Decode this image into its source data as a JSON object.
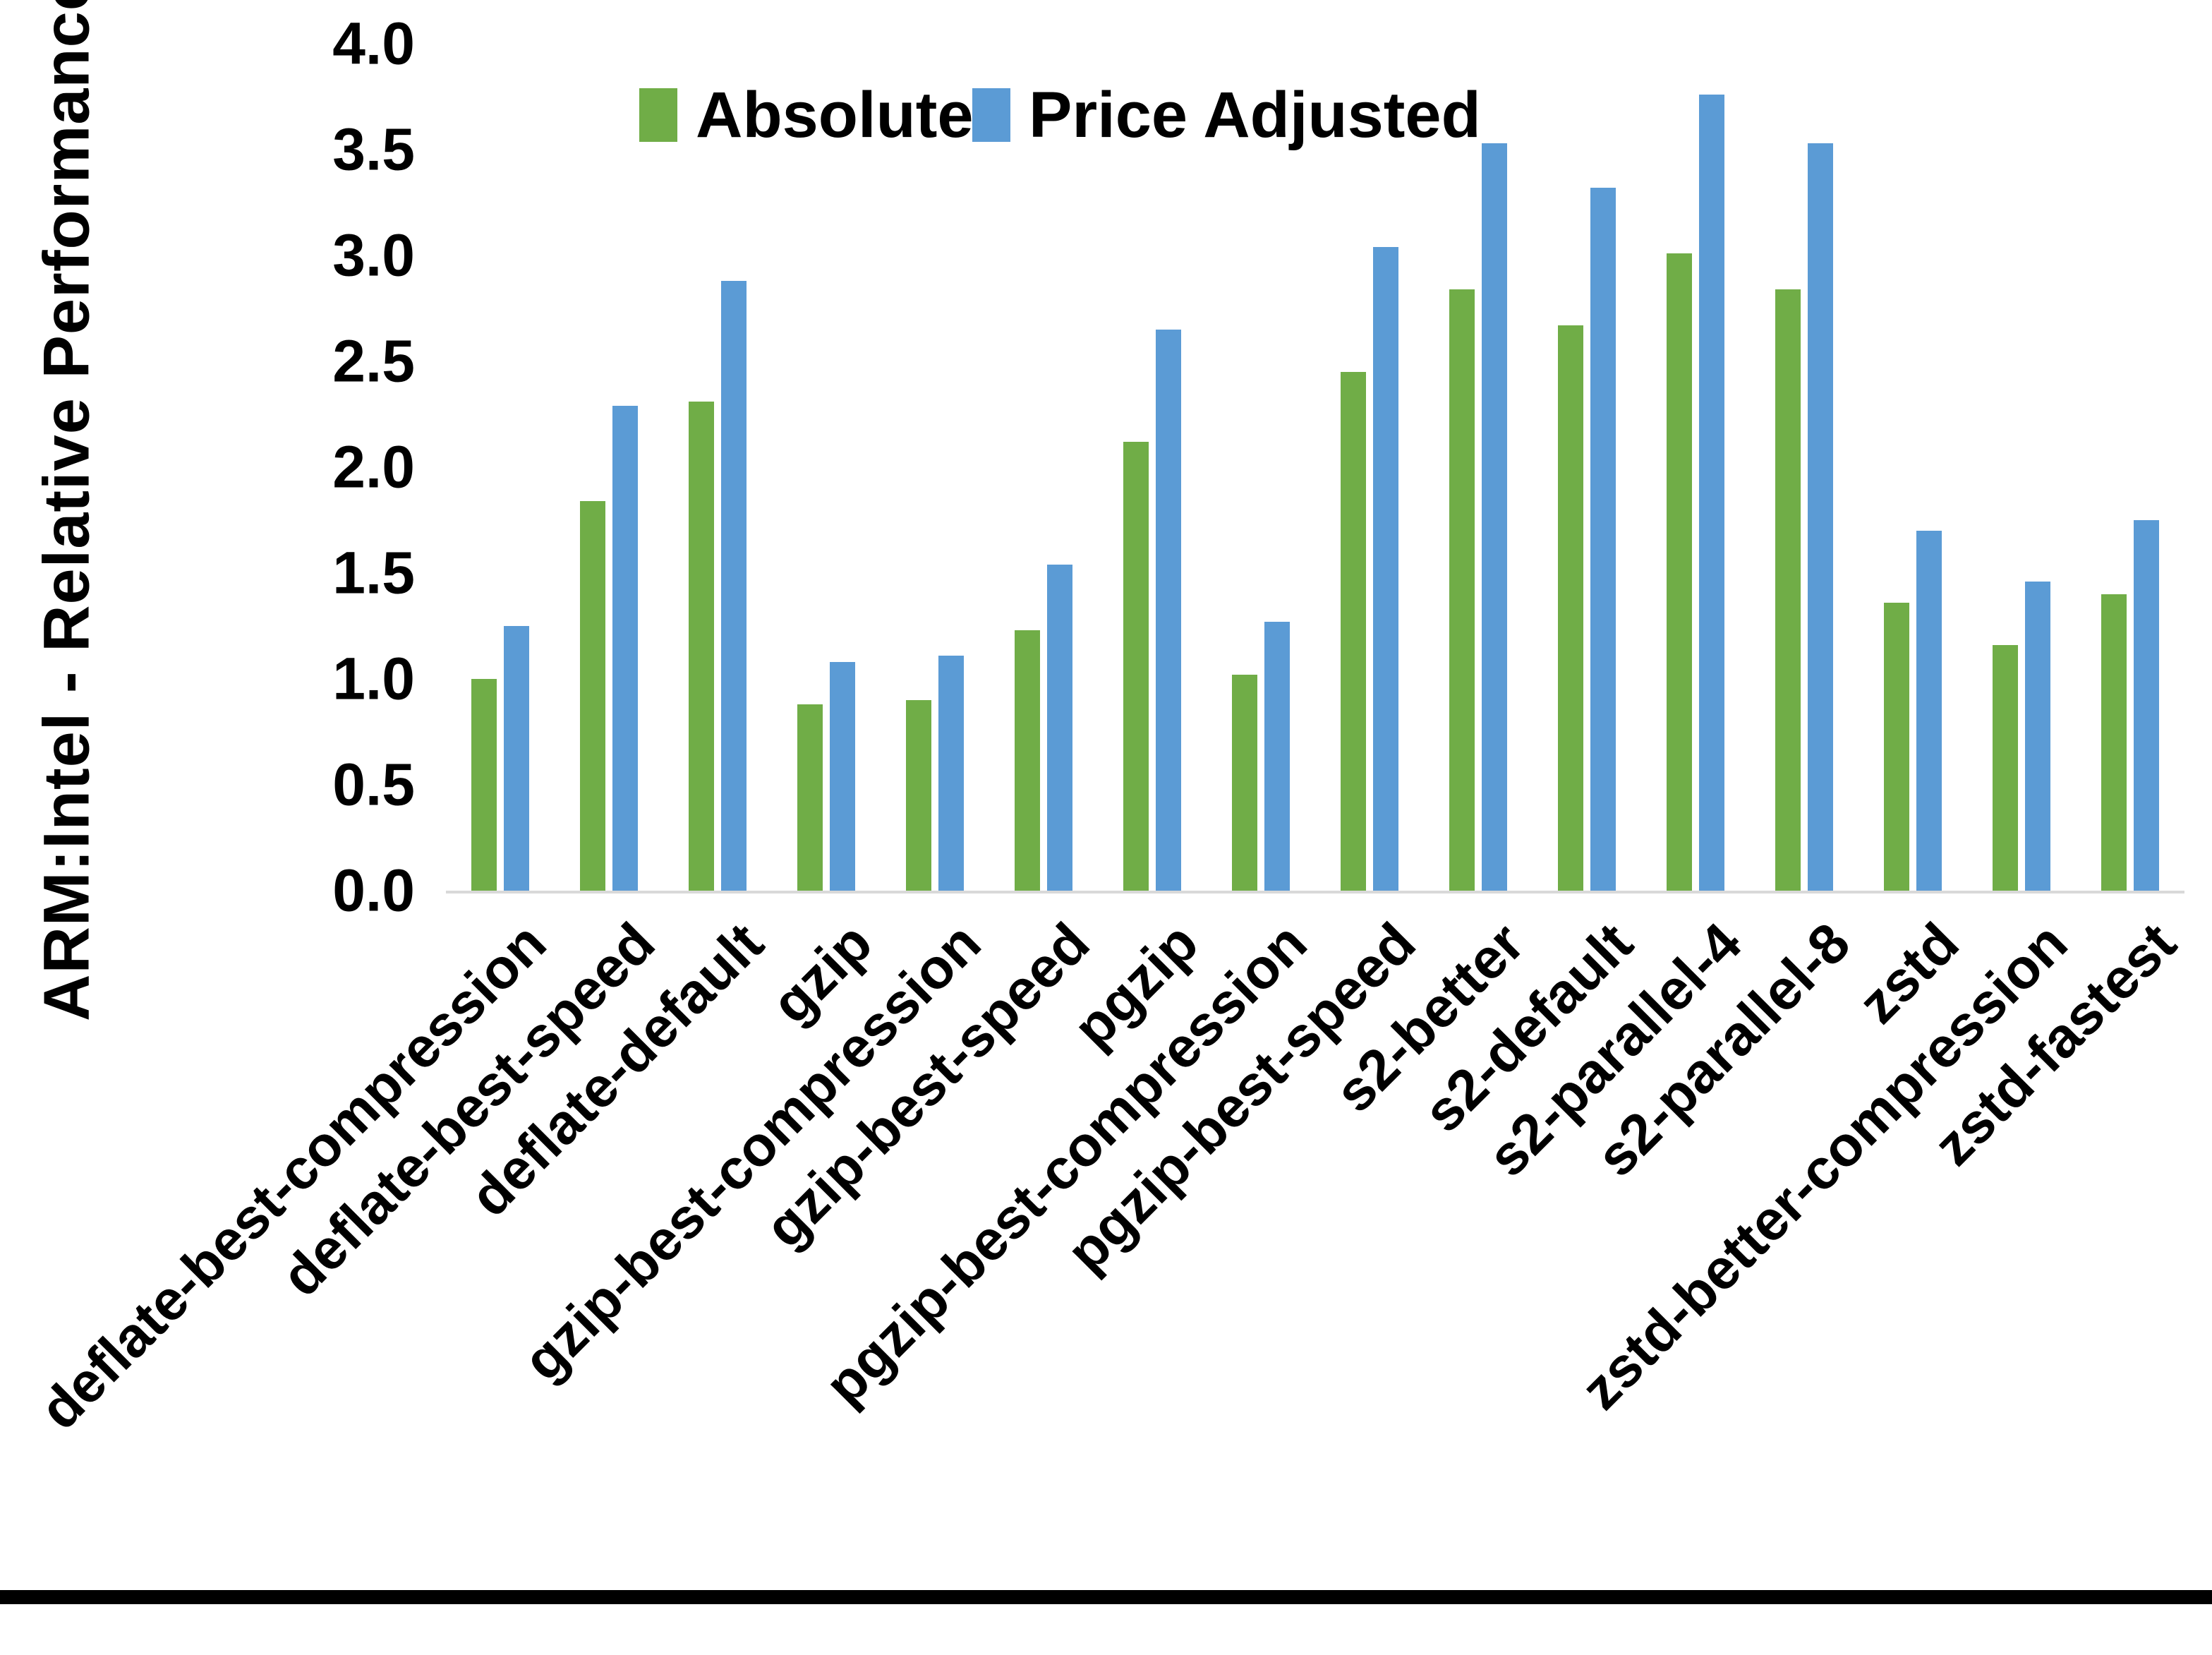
{
  "chart_data": {
    "type": "bar",
    "title": "",
    "xlabel": "",
    "ylabel": "ARM:Intel - Relative Performance",
    "ylim": [
      0.0,
      4.0
    ],
    "ytick_step": 0.5,
    "ytick_labels": [
      "0.0",
      "0.5",
      "1.0",
      "1.5",
      "2.0",
      "2.5",
      "3.0",
      "3.5",
      "4.0"
    ],
    "grid": false,
    "legend_position": "top-center",
    "categories": [
      "deflate-best-compression",
      "deflate-best-speed",
      "deflate-default",
      "gzip",
      "gzip-best-compression",
      "gzip-best-speed",
      "pgzip",
      "pgzip-best-compression",
      "pgzip-best-speed",
      "s2-better",
      "s2-default",
      "s2-parallel-4",
      "s2-parallel-8",
      "zstd",
      "zstd-better-compression",
      "zstd-fastest"
    ],
    "series": [
      {
        "name": "Absolute",
        "color": "#70AD47",
        "values": [
          1.0,
          1.84,
          2.31,
          0.88,
          0.9,
          1.23,
          2.12,
          1.02,
          2.45,
          2.84,
          2.67,
          3.01,
          2.84,
          1.36,
          1.16,
          1.4
        ]
      },
      {
        "name": "Price Adjusted",
        "color": "#5B9BD5",
        "values": [
          1.25,
          2.29,
          2.88,
          1.08,
          1.11,
          1.54,
          2.65,
          1.27,
          3.04,
          3.53,
          3.32,
          3.76,
          3.53,
          1.7,
          1.46,
          1.75
        ]
      }
    ]
  },
  "colors": {
    "background": "#FFFFFF",
    "axis_line": "#D9D9D9",
    "text": "#000000",
    "bottom_border": "#000000"
  }
}
